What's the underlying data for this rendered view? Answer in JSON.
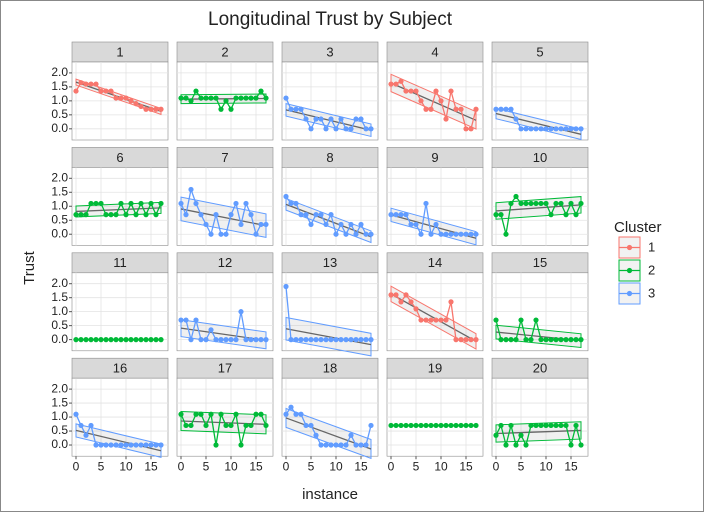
{
  "chart_data": {
    "type": "facet-line",
    "title": "Longitudinal Trust by Subject",
    "xlabel": "instance",
    "ylabel": "Trust",
    "legend_title": "Cluster",
    "clusters": [
      {
        "name": "1",
        "color": "#f8766d"
      },
      {
        "name": "2",
        "color": "#00ba38"
      },
      {
        "name": "3",
        "color": "#619cff"
      }
    ],
    "xlim": [
      -0.8,
      18.4
    ],
    "ylim": [
      -0.4,
      2.39
    ],
    "xticks": [
      0,
      5,
      10,
      15
    ],
    "yticks": [
      {
        "value": 0,
        "label": "0.0"
      },
      {
        "value": 0.5,
        "label": "0.5"
      },
      {
        "value": 1,
        "label": "1.0"
      },
      {
        "value": 1.5,
        "label": "1.5"
      },
      {
        "value": 2,
        "label": "2.0"
      }
    ],
    "grid": true,
    "x": [
      0,
      1,
      2,
      3,
      4,
      5,
      6,
      7,
      8,
      9,
      10,
      11,
      12,
      13,
      14,
      15,
      16,
      17
    ],
    "panels": [
      {
        "label": "1",
        "color": "#f8766d",
        "values": [
          1.35,
          1.65,
          1.6,
          1.6,
          1.6,
          1.35,
          1.35,
          1.35,
          1.1,
          1.1,
          1.1,
          1.0,
          0.9,
          0.8,
          0.7,
          0.7,
          0.7,
          0.7
        ]
      },
      {
        "label": "2",
        "color": "#00ba38",
        "values": [
          1.1,
          1.1,
          1.0,
          1.35,
          1.1,
          1.1,
          1.1,
          1.1,
          0.7,
          1.0,
          0.7,
          1.1,
          1.1,
          1.1,
          1.1,
          1.1,
          1.35,
          1.1
        ]
      },
      {
        "label": "3",
        "color": "#619cff",
        "values": [
          1.1,
          0.7,
          0.7,
          0.7,
          0.35,
          0,
          0.35,
          0.35,
          0,
          0.35,
          0,
          0.35,
          0,
          0,
          0.35,
          0.35,
          0,
          0
        ]
      },
      {
        "label": "4",
        "color": "#f8766d",
        "values": [
          1.6,
          1.6,
          1.7,
          1.35,
          1.35,
          1.35,
          1.0,
          0.7,
          0.7,
          1.35,
          1.0,
          0.35,
          1.35,
          0.7,
          0.7,
          0,
          0,
          0.7
        ]
      },
      {
        "label": "5",
        "color": "#619cff",
        "values": [
          0.7,
          0.7,
          0.7,
          0.7,
          0.35,
          0,
          0,
          0,
          0,
          0,
          0,
          0,
          0,
          0,
          0,
          0,
          0,
          0
        ]
      },
      {
        "label": "6",
        "color": "#00ba38",
        "values": [
          0.7,
          0.7,
          0.7,
          1.1,
          1.1,
          1.1,
          0.7,
          0.7,
          0.7,
          1.1,
          0.7,
          1.1,
          0.7,
          1.1,
          0.7,
          1.1,
          0.7,
          1.1
        ]
      },
      {
        "label": "7",
        "color": "#619cff",
        "values": [
          1.1,
          0.7,
          1.6,
          1.1,
          0.7,
          0.35,
          0,
          0.7,
          0,
          0,
          0.7,
          1.1,
          0.35,
          1.1,
          0.7,
          0,
          0.35,
          0.35
        ]
      },
      {
        "label": "8",
        "color": "#619cff",
        "values": [
          1.35,
          1.1,
          1.1,
          0.7,
          0.7,
          0.35,
          0.7,
          0.7,
          0.35,
          0.7,
          0,
          0.35,
          0,
          0.35,
          0,
          0.35,
          0,
          0
        ]
      },
      {
        "label": "9",
        "color": "#619cff",
        "values": [
          0.7,
          0.7,
          0.7,
          0.7,
          0.35,
          0.35,
          0,
          1.1,
          0,
          0.35,
          0,
          0,
          0,
          0,
          0,
          0,
          0,
          0
        ]
      },
      {
        "label": "10",
        "color": "#00ba38",
        "values": [
          0.7,
          0.7,
          0,
          1.1,
          1.35,
          1.1,
          1.1,
          1.1,
          1.1,
          1.1,
          1.1,
          0.7,
          1.1,
          1.1,
          0.7,
          1.1,
          0.7,
          1.1
        ]
      },
      {
        "label": "11",
        "color": "#00ba38",
        "values": [
          0,
          0,
          0,
          0,
          0,
          0,
          0,
          0,
          0,
          0,
          0,
          0,
          0,
          0,
          0,
          0,
          0,
          0
        ]
      },
      {
        "label": "12",
        "color": "#619cff",
        "values": [
          0.7,
          0.7,
          0,
          0.7,
          0,
          0,
          0.35,
          0,
          0,
          0,
          0,
          0,
          1.0,
          0,
          0,
          0,
          0,
          0
        ]
      },
      {
        "label": "13",
        "color": "#619cff",
        "values": [
          1.9,
          0,
          0,
          0,
          0,
          0,
          0,
          0,
          0,
          0,
          0,
          0,
          0,
          0,
          0,
          0,
          0,
          0
        ]
      },
      {
        "label": "14",
        "color": "#f8766d",
        "values": [
          1.6,
          1.6,
          1.35,
          1.6,
          1.35,
          1.1,
          0.7,
          0.7,
          0.7,
          0.7,
          0.7,
          0.7,
          1.35,
          0,
          0,
          0,
          0,
          0
        ]
      },
      {
        "label": "15",
        "color": "#00ba38",
        "values": [
          0.7,
          0,
          0,
          0,
          0,
          0.7,
          0,
          0,
          0.7,
          0,
          0,
          0,
          0,
          0,
          0,
          0,
          0,
          0
        ]
      },
      {
        "label": "16",
        "color": "#619cff",
        "values": [
          1.1,
          0.7,
          0.35,
          0.7,
          0,
          0,
          0,
          0,
          0,
          0,
          0,
          0,
          0,
          0,
          0,
          0,
          0,
          0
        ]
      },
      {
        "label": "17",
        "color": "#00ba38",
        "values": [
          1.1,
          0.7,
          0.7,
          1.1,
          1.1,
          0.7,
          1.1,
          0,
          1.1,
          0.7,
          0.7,
          1.1,
          0,
          0.7,
          0.7,
          1.1,
          1.1,
          0.7
        ]
      },
      {
        "label": "18",
        "color": "#619cff",
        "values": [
          1.1,
          1.35,
          1.1,
          1.1,
          0.7,
          0.7,
          0.35,
          0,
          0,
          0,
          0,
          0,
          0,
          0.35,
          0,
          0,
          0,
          0.7
        ]
      },
      {
        "label": "19",
        "color": "#00ba38",
        "values": [
          0.7,
          0.7,
          0.7,
          0.7,
          0.7,
          0.7,
          0.7,
          0.7,
          0.7,
          0.7,
          0.7,
          0.7,
          0.7,
          0.7,
          0.7,
          0.7,
          0.7,
          0.7
        ]
      },
      {
        "label": "20",
        "color": "#00ba38",
        "values": [
          0.35,
          0.7,
          0,
          0.7,
          0,
          0.35,
          0,
          0.7,
          0.7,
          0.7,
          0.7,
          0.7,
          0.7,
          0.7,
          0.7,
          0,
          0.7,
          0
        ]
      }
    ]
  }
}
